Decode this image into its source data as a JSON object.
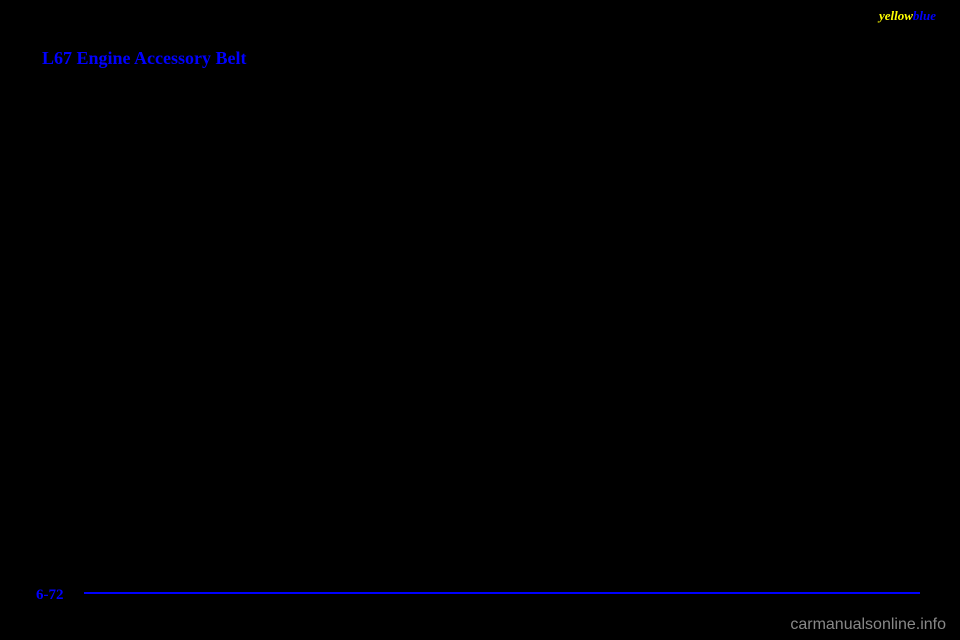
{
  "header": {
    "part1": "yellow",
    "part2": "blue",
    "part1_color": "#ffff00",
    "part2_color": "#0000ff",
    "fontsize": 13
  },
  "title": {
    "text": "L67 Engine Accessory Belt",
    "color": "#0000ff",
    "fontsize": 18
  },
  "page_number": {
    "text": "6-72",
    "color": "#0000ff",
    "fontsize": 15
  },
  "footer_line": {
    "color": "#0000ff",
    "height": 2
  },
  "watermark": {
    "text": "carmanualsonline.info",
    "color": "#888888",
    "fontsize": 16
  },
  "background_color": "#000000"
}
